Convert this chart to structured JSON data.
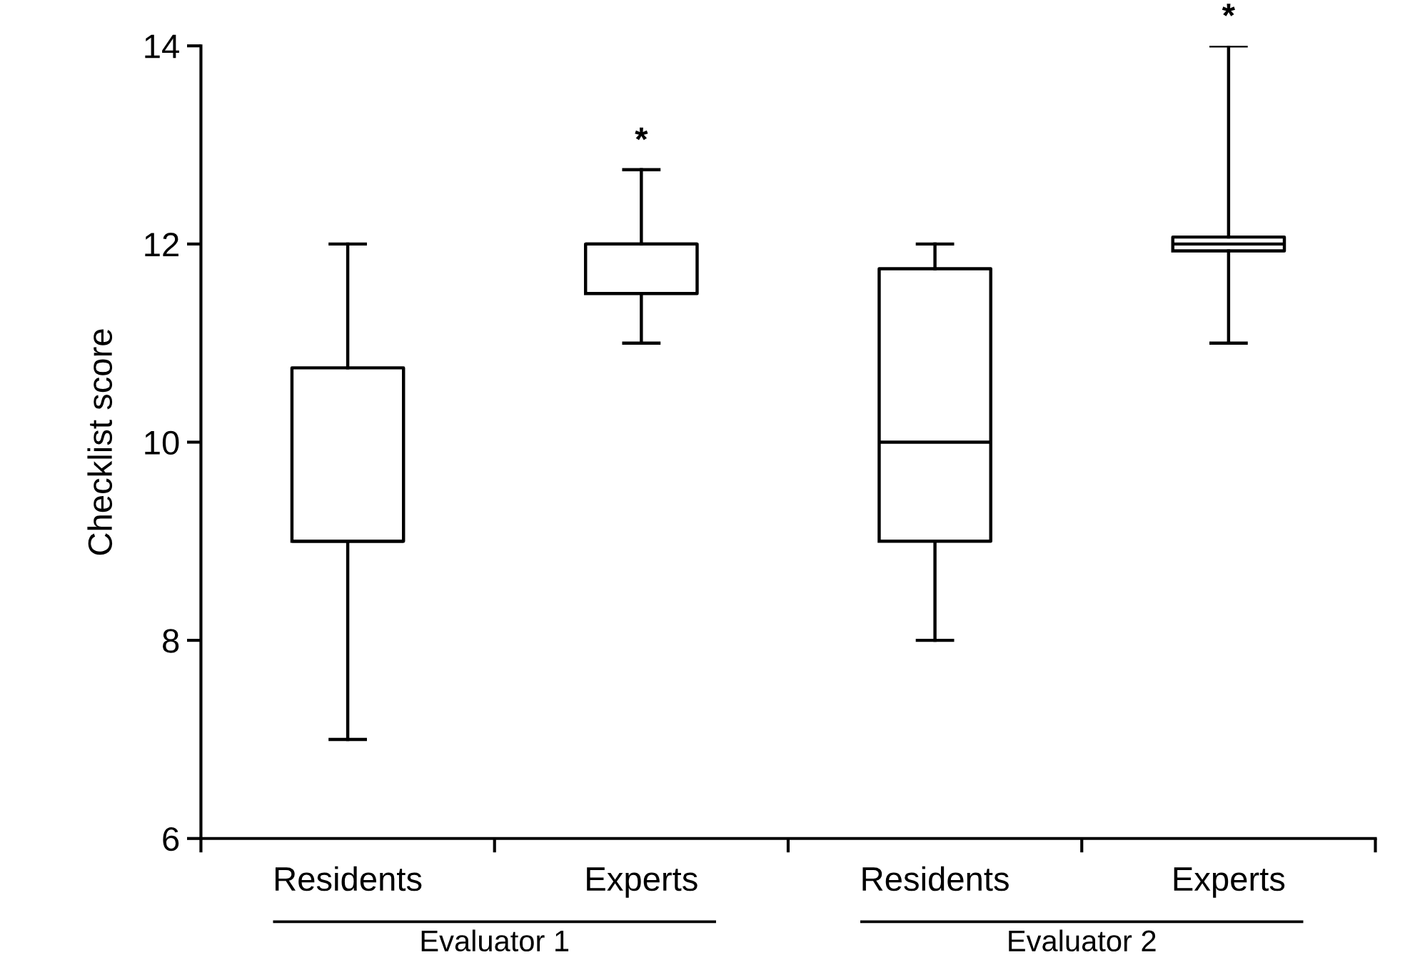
{
  "chart_data": {
    "type": "box",
    "ylabel": "Checklist score",
    "categories": [
      "Residents",
      "Experts",
      "Residents",
      "Experts"
    ],
    "boxes": [
      {
        "low": 7,
        "q1": 9,
        "median": 9,
        "q3": 10.75,
        "high": 12
      },
      {
        "low": 11,
        "q1": 11.5,
        "median": 12,
        "q3": 12,
        "high": 12.75
      },
      {
        "low": 8,
        "q1": 9,
        "median": 10,
        "q3": 11.75,
        "high": 12
      },
      {
        "low": 11,
        "q1": 11.93,
        "median": 12,
        "q3": 12.07,
        "high": 14
      }
    ],
    "ylim": [
      6,
      14
    ],
    "yticks": [
      6,
      8,
      10,
      12,
      14
    ],
    "grid": false,
    "annotations": [
      "*",
      "*",
      "Evaluator 1",
      "Evaluator 2"
    ]
  }
}
